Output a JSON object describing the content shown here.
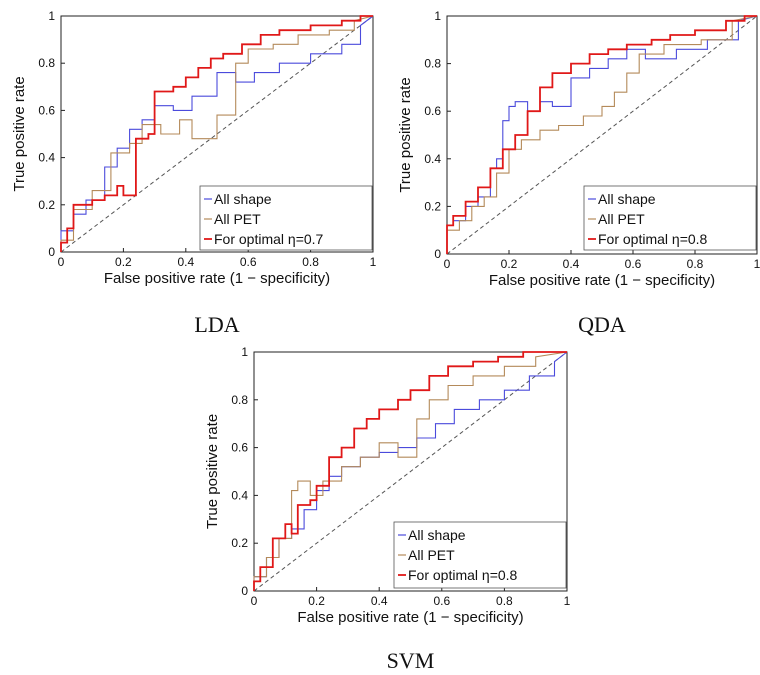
{
  "colors": {
    "all_shape": "#4b4bdc",
    "all_pet": "#b48a5a",
    "optimal": "#e01818",
    "diagonal": "#555555"
  },
  "chart_data": [
    {
      "type": "line",
      "caption": "LDA",
      "xlabel": "False positive rate (1 − specificity)",
      "ylabel": "True positive rate",
      "xlim": [
        0,
        1
      ],
      "ylim": [
        0,
        1
      ],
      "xticks": [
        "0",
        "0.2",
        "0.4",
        "0.6",
        "0.8",
        "1"
      ],
      "yticks": [
        "0",
        "0.2",
        "0.4",
        "0.6",
        "0.8",
        "1"
      ],
      "legend_position": "bottom-right",
      "grid": false,
      "series": [
        {
          "name": "All shape",
          "color_key": "all_shape",
          "x": [
            0,
            0,
            0.04,
            0.04,
            0.08,
            0.08,
            0.14,
            0.14,
            0.18,
            0.18,
            0.22,
            0.22,
            0.26,
            0.26,
            0.3,
            0.3,
            0.36,
            0.36,
            0.42,
            0.42,
            0.5,
            0.5,
            0.56,
            0.56,
            0.62,
            0.62,
            0.7,
            0.7,
            0.8,
            0.8,
            0.9,
            0.9,
            0.96,
            0.96,
            1
          ],
          "y": [
            0,
            0.09,
            0.09,
            0.16,
            0.16,
            0.22,
            0.22,
            0.36,
            0.36,
            0.44,
            0.44,
            0.52,
            0.52,
            0.56,
            0.56,
            0.62,
            0.62,
            0.6,
            0.6,
            0.66,
            0.66,
            0.76,
            0.76,
            0.72,
            0.72,
            0.76,
            0.76,
            0.8,
            0.8,
            0.84,
            0.84,
            0.88,
            0.88,
            0.96,
            1
          ]
        },
        {
          "name": "All PET",
          "color_key": "all_pet",
          "x": [
            0,
            0,
            0.04,
            0.04,
            0.1,
            0.1,
            0.16,
            0.16,
            0.22,
            0.22,
            0.26,
            0.26,
            0.32,
            0.32,
            0.38,
            0.38,
            0.42,
            0.42,
            0.5,
            0.5,
            0.56,
            0.56,
            0.6,
            0.6,
            0.68,
            0.68,
            0.76,
            0.76,
            0.86,
            0.86,
            0.94,
            0.94,
            1
          ],
          "y": [
            0,
            0.05,
            0.05,
            0.18,
            0.18,
            0.26,
            0.26,
            0.42,
            0.42,
            0.46,
            0.46,
            0.54,
            0.54,
            0.5,
            0.5,
            0.56,
            0.56,
            0.48,
            0.48,
            0.58,
            0.58,
            0.8,
            0.8,
            0.86,
            0.86,
            0.88,
            0.88,
            0.92,
            0.92,
            0.94,
            0.94,
            0.98,
            1
          ]
        },
        {
          "name": "For optimal η=0.7",
          "color_key": "optimal",
          "x": [
            0,
            0,
            0.02,
            0.02,
            0.04,
            0.04,
            0.1,
            0.1,
            0.14,
            0.14,
            0.18,
            0.18,
            0.2,
            0.2,
            0.24,
            0.24,
            0.28,
            0.28,
            0.3,
            0.3,
            0.36,
            0.36,
            0.4,
            0.4,
            0.44,
            0.44,
            0.48,
            0.48,
            0.52,
            0.52,
            0.58,
            0.58,
            0.64,
            0.64,
            0.7,
            0.7,
            0.8,
            0.8,
            0.9,
            0.9,
            0.96,
            0.96,
            1
          ],
          "y": [
            0,
            0.04,
            0.04,
            0.1,
            0.1,
            0.2,
            0.2,
            0.22,
            0.22,
            0.24,
            0.24,
            0.28,
            0.28,
            0.24,
            0.24,
            0.48,
            0.48,
            0.5,
            0.5,
            0.68,
            0.68,
            0.7,
            0.7,
            0.74,
            0.74,
            0.78,
            0.78,
            0.82,
            0.82,
            0.84,
            0.84,
            0.88,
            0.88,
            0.92,
            0.92,
            0.94,
            0.94,
            0.96,
            0.96,
            0.98,
            0.98,
            1.0,
            1
          ]
        }
      ]
    },
    {
      "type": "line",
      "caption": "QDA",
      "xlabel": "False positive rate (1 − specificity)",
      "ylabel": "True positive rate",
      "xlim": [
        0,
        1
      ],
      "ylim": [
        0,
        1
      ],
      "xticks": [
        "0",
        "0.2",
        "0.4",
        "0.6",
        "0.8",
        "1"
      ],
      "yticks": [
        "0",
        "0.2",
        "0.4",
        "0.6",
        "0.8",
        "1"
      ],
      "legend_position": "bottom-right",
      "grid": false,
      "series": [
        {
          "name": "All shape",
          "color_key": "all_shape",
          "x": [
            0,
            0,
            0.02,
            0.02,
            0.06,
            0.06,
            0.1,
            0.1,
            0.14,
            0.14,
            0.16,
            0.16,
            0.18,
            0.18,
            0.2,
            0.2,
            0.22,
            0.22,
            0.26,
            0.26,
            0.3,
            0.3,
            0.34,
            0.34,
            0.4,
            0.4,
            0.46,
            0.46,
            0.52,
            0.52,
            0.58,
            0.58,
            0.64,
            0.64,
            0.74,
            0.74,
            0.84,
            0.84,
            0.94,
            0.94,
            1
          ],
          "y": [
            0,
            0.12,
            0.12,
            0.14,
            0.14,
            0.2,
            0.2,
            0.24,
            0.24,
            0.36,
            0.36,
            0.4,
            0.4,
            0.56,
            0.56,
            0.62,
            0.62,
            0.64,
            0.64,
            0.6,
            0.6,
            0.64,
            0.64,
            0.62,
            0.62,
            0.74,
            0.74,
            0.78,
            0.78,
            0.82,
            0.82,
            0.86,
            0.86,
            0.82,
            0.82,
            0.86,
            0.86,
            0.9,
            0.9,
            0.98,
            1
          ]
        },
        {
          "name": "All PET",
          "color_key": "all_pet",
          "x": [
            0,
            0,
            0.04,
            0.04,
            0.08,
            0.08,
            0.12,
            0.12,
            0.16,
            0.16,
            0.2,
            0.2,
            0.24,
            0.24,
            0.3,
            0.3,
            0.36,
            0.36,
            0.44,
            0.44,
            0.5,
            0.5,
            0.54,
            0.54,
            0.58,
            0.58,
            0.62,
            0.62,
            0.7,
            0.7,
            0.82,
            0.82,
            0.92,
            0.92,
            1
          ],
          "y": [
            0,
            0.1,
            0.1,
            0.14,
            0.14,
            0.2,
            0.2,
            0.24,
            0.24,
            0.34,
            0.34,
            0.44,
            0.44,
            0.48,
            0.48,
            0.52,
            0.52,
            0.54,
            0.54,
            0.58,
            0.58,
            0.62,
            0.62,
            0.68,
            0.68,
            0.76,
            0.76,
            0.84,
            0.84,
            0.88,
            0.88,
            0.9,
            0.9,
            0.98,
            1
          ]
        },
        {
          "name": "For optimal η=0.8",
          "color_key": "optimal",
          "x": [
            0,
            0,
            0.02,
            0.02,
            0.06,
            0.06,
            0.1,
            0.1,
            0.14,
            0.14,
            0.18,
            0.18,
            0.22,
            0.22,
            0.26,
            0.26,
            0.3,
            0.3,
            0.34,
            0.34,
            0.4,
            0.4,
            0.46,
            0.46,
            0.52,
            0.52,
            0.58,
            0.58,
            0.66,
            0.66,
            0.72,
            0.72,
            0.8,
            0.8,
            0.9,
            0.9,
            0.96,
            0.96,
            1
          ],
          "y": [
            0,
            0.12,
            0.12,
            0.16,
            0.16,
            0.22,
            0.22,
            0.28,
            0.28,
            0.36,
            0.36,
            0.44,
            0.44,
            0.5,
            0.5,
            0.6,
            0.6,
            0.7,
            0.7,
            0.76,
            0.76,
            0.8,
            0.8,
            0.84,
            0.84,
            0.86,
            0.86,
            0.88,
            0.88,
            0.9,
            0.9,
            0.92,
            0.92,
            0.94,
            0.94,
            0.98,
            0.98,
            1.0,
            1
          ]
        }
      ]
    },
    {
      "type": "line",
      "caption": "SVM",
      "xlabel": "False positive rate (1 − specificity)",
      "ylabel": "True positive rate",
      "xlim": [
        0,
        1
      ],
      "ylim": [
        0,
        1
      ],
      "xticks": [
        "0",
        "0.2",
        "0.4",
        "0.6",
        "0.8",
        "1"
      ],
      "yticks": [
        "0",
        "0.2",
        "0.4",
        "0.6",
        "0.8",
        "1"
      ],
      "legend_position": "bottom-right",
      "grid": false,
      "series": [
        {
          "name": "All shape",
          "color_key": "all_shape",
          "x": [
            0,
            0,
            0.04,
            0.04,
            0.08,
            0.08,
            0.12,
            0.12,
            0.16,
            0.16,
            0.2,
            0.2,
            0.24,
            0.24,
            0.28,
            0.28,
            0.34,
            0.34,
            0.4,
            0.4,
            0.46,
            0.46,
            0.52,
            0.52,
            0.58,
            0.58,
            0.64,
            0.64,
            0.72,
            0.72,
            0.8,
            0.8,
            0.88,
            0.88,
            0.96,
            0.96,
            1
          ],
          "y": [
            0,
            0.06,
            0.06,
            0.14,
            0.14,
            0.22,
            0.22,
            0.26,
            0.26,
            0.34,
            0.34,
            0.42,
            0.42,
            0.48,
            0.48,
            0.52,
            0.52,
            0.56,
            0.56,
            0.58,
            0.58,
            0.6,
            0.6,
            0.64,
            0.64,
            0.7,
            0.7,
            0.76,
            0.76,
            0.8,
            0.8,
            0.84,
            0.84,
            0.9,
            0.9,
            0.96,
            1
          ]
        },
        {
          "name": "All PET",
          "color_key": "all_pet",
          "x": [
            0,
            0,
            0.04,
            0.04,
            0.08,
            0.08,
            0.12,
            0.12,
            0.14,
            0.14,
            0.18,
            0.18,
            0.22,
            0.22,
            0.28,
            0.28,
            0.34,
            0.34,
            0.4,
            0.4,
            0.46,
            0.46,
            0.52,
            0.52,
            0.56,
            0.56,
            0.62,
            0.62,
            0.7,
            0.7,
            0.8,
            0.8,
            0.9,
            0.9,
            1
          ],
          "y": [
            0,
            0.06,
            0.06,
            0.14,
            0.14,
            0.22,
            0.22,
            0.42,
            0.42,
            0.46,
            0.46,
            0.4,
            0.4,
            0.46,
            0.46,
            0.52,
            0.52,
            0.56,
            0.56,
            0.62,
            0.62,
            0.56,
            0.56,
            0.72,
            0.72,
            0.8,
            0.8,
            0.86,
            0.86,
            0.9,
            0.9,
            0.94,
            0.94,
            0.98,
            1
          ]
        },
        {
          "name": "For optimal η=0.8",
          "color_key": "optimal",
          "x": [
            0,
            0,
            0.02,
            0.02,
            0.06,
            0.06,
            0.1,
            0.1,
            0.12,
            0.12,
            0.14,
            0.14,
            0.18,
            0.18,
            0.2,
            0.2,
            0.24,
            0.24,
            0.28,
            0.28,
            0.32,
            0.32,
            0.36,
            0.36,
            0.4,
            0.4,
            0.46,
            0.46,
            0.5,
            0.5,
            0.56,
            0.56,
            0.62,
            0.62,
            0.7,
            0.7,
            0.78,
            0.78,
            0.86,
            0.86,
            0.94,
            0.94,
            1
          ],
          "y": [
            0,
            0.04,
            0.04,
            0.1,
            0.1,
            0.22,
            0.22,
            0.28,
            0.28,
            0.24,
            0.24,
            0.36,
            0.36,
            0.38,
            0.38,
            0.44,
            0.44,
            0.56,
            0.56,
            0.6,
            0.6,
            0.68,
            0.68,
            0.72,
            0.72,
            0.76,
            0.76,
            0.8,
            0.8,
            0.84,
            0.84,
            0.9,
            0.9,
            0.94,
            0.94,
            0.96,
            0.96,
            0.98,
            0.98,
            1.0,
            1.0,
            1.0,
            1
          ]
        }
      ]
    }
  ]
}
